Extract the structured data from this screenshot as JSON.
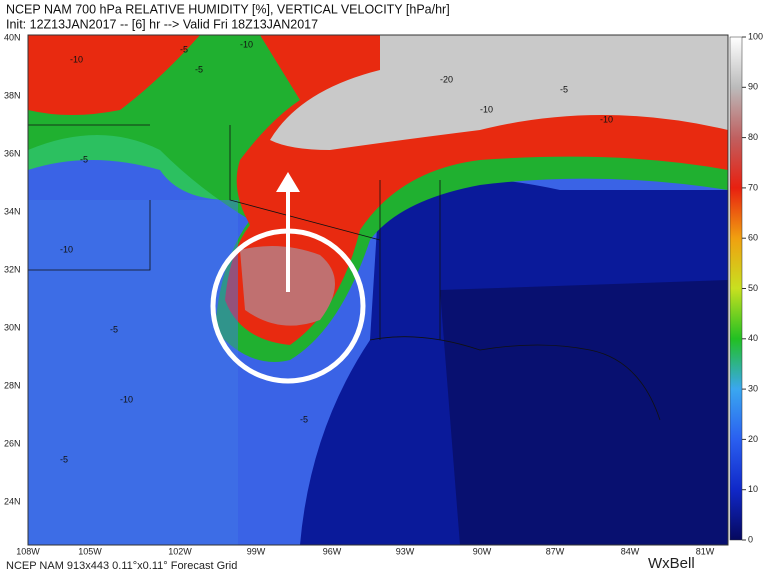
{
  "header": {
    "line1": "NCEP NAM 700 hPa RELATIVE HUMIDITY [%], VERTICAL VELOCITY [hPa/hr]",
    "line2": "Init: 12Z13JAN2017 -- [6] hr --> Valid Fri 18Z13JAN2017"
  },
  "map": {
    "lat_labels": [
      "40N",
      "38N",
      "36N",
      "34N",
      "32N",
      "30N",
      "28N",
      "26N",
      "24N"
    ],
    "lon_labels": [
      "108W",
      "105W",
      "102W",
      "99W",
      "96W",
      "93W",
      "90W",
      "87W",
      "84W",
      "81W"
    ],
    "contour_labels": [
      "-10",
      "-5",
      "-10",
      "-5",
      "-20",
      "-10",
      "-5",
      "-10",
      "-5",
      "-10",
      "-5",
      "-10",
      "-5",
      "-5"
    ]
  },
  "colorbar": {
    "ticks": [
      0,
      10,
      20,
      30,
      40,
      50,
      60,
      70,
      80,
      90,
      100
    ]
  },
  "footer": {
    "text": "NCEP NAM 913x443 0.11°x0.11° Forecast Grid",
    "logo": "WxBell"
  }
}
